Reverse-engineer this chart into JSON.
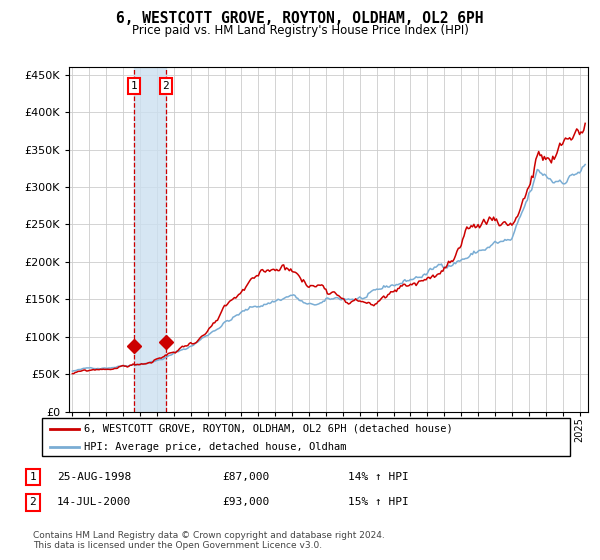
{
  "title": "6, WESTCOTT GROVE, ROYTON, OLDHAM, OL2 6PH",
  "subtitle": "Price paid vs. HM Land Registry's House Price Index (HPI)",
  "legend_line1": "6, WESTCOTT GROVE, ROYTON, OLDHAM, OL2 6PH (detached house)",
  "legend_line2": "HPI: Average price, detached house, Oldham",
  "table_rows": [
    {
      "num": "1",
      "date": "25-AUG-1998",
      "price": "£87,000",
      "hpi": "14% ↑ HPI"
    },
    {
      "num": "2",
      "date": "14-JUL-2000",
      "price": "£93,000",
      "hpi": "15% ↑ HPI"
    }
  ],
  "footnote": "Contains HM Land Registry data © Crown copyright and database right 2024.\nThis data is licensed under the Open Government Licence v3.0.",
  "hpi_color": "#7aadd4",
  "price_color": "#cc0000",
  "background_color": "#ffffff",
  "grid_color": "#cccccc",
  "sale1_x": 1998.646,
  "sale2_x": 2000.537,
  "sale1_y": 87000,
  "sale2_y": 93000,
  "ylim": [
    0,
    460000
  ],
  "xlim_start": 1994.8,
  "xlim_end": 2025.5,
  "yticks": [
    0,
    50000,
    100000,
    150000,
    200000,
    250000,
    300000,
    350000,
    400000,
    450000
  ],
  "xtick_years": [
    1995,
    1996,
    1997,
    1998,
    1999,
    2000,
    2001,
    2002,
    2003,
    2004,
    2005,
    2006,
    2007,
    2008,
    2009,
    2010,
    2011,
    2012,
    2013,
    2014,
    2015,
    2016,
    2017,
    2018,
    2019,
    2020,
    2021,
    2022,
    2023,
    2024,
    2025
  ]
}
